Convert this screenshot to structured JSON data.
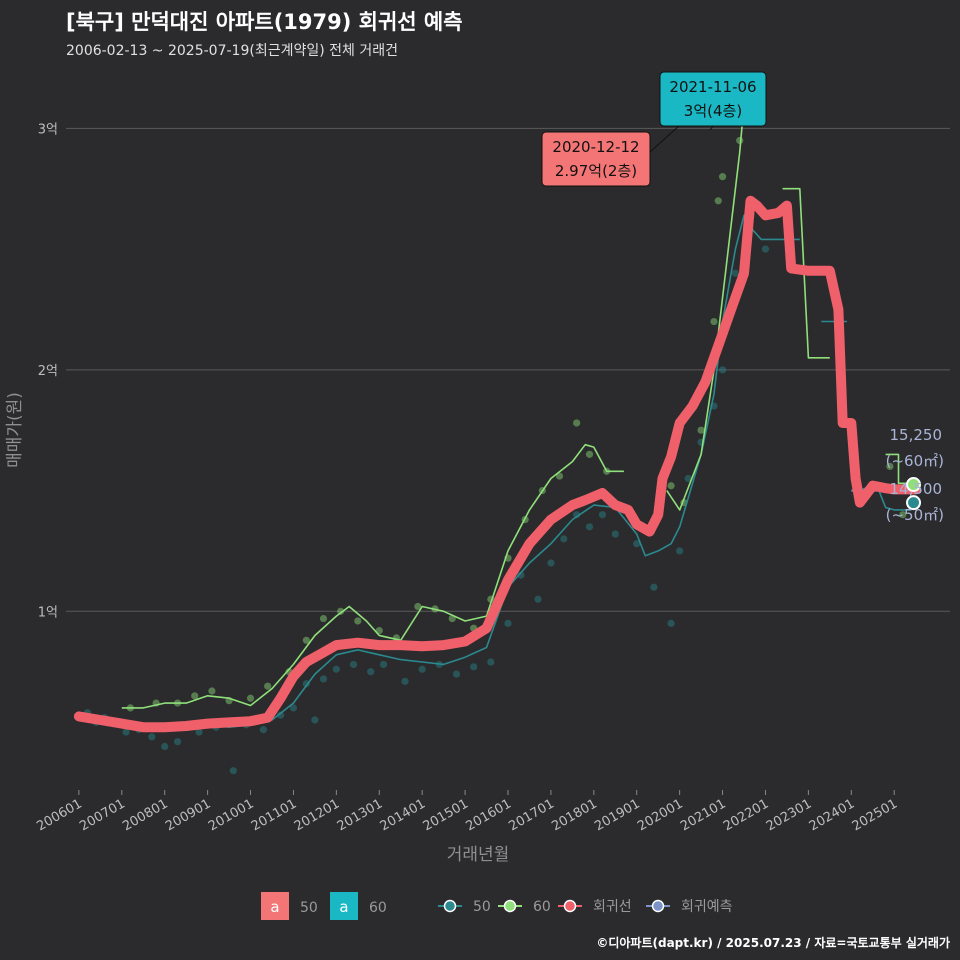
{
  "title": "[북구] 만덕대진 아파트(1979) 회귀선 예측",
  "subtitle": "2006-02-13 ~ 2025-07-19(최근계약일) 전체 거래건",
  "credit": "©디아파트(dapt.kr) / 2025.07.23 / 자료=국토교통부 실거래가",
  "colors": {
    "background": "#2b2b2d",
    "grid": "#5a5a5a",
    "area50": "#2a8a8f",
    "area60": "#8fe07a",
    "regression": "#f0606a",
    "forecast": "#7b93c9",
    "callout_red": "#f47575",
    "callout_teal": "#19b8c4"
  },
  "chart_data": {
    "type": "line",
    "xlabel": "거래년월",
    "ylabel": "매매가(원)",
    "x_unit": "decimal year",
    "y_unit": "만원",
    "xlim": [
      2005.7,
      2026.3
    ],
    "ylim": [
      2600,
      32500
    ],
    "x_ticks": [
      {
        "x": 2006.0,
        "label": "200601"
      },
      {
        "x": 2007.0,
        "label": "200701"
      },
      {
        "x": 2008.0,
        "label": "200801"
      },
      {
        "x": 2009.0,
        "label": "200901"
      },
      {
        "x": 2010.0,
        "label": "201001"
      },
      {
        "x": 2011.0,
        "label": "201101"
      },
      {
        "x": 2012.0,
        "label": "201201"
      },
      {
        "x": 2013.0,
        "label": "201301"
      },
      {
        "x": 2014.0,
        "label": "201401"
      },
      {
        "x": 2015.0,
        "label": "201501"
      },
      {
        "x": 2016.0,
        "label": "201601"
      },
      {
        "x": 2017.0,
        "label": "201701"
      },
      {
        "x": 2018.0,
        "label": "201801"
      },
      {
        "x": 2019.0,
        "label": "201901"
      },
      {
        "x": 2020.0,
        "label": "202001"
      },
      {
        "x": 2021.0,
        "label": "202101"
      },
      {
        "x": 2022.0,
        "label": "202201"
      },
      {
        "x": 2023.0,
        "label": "202301"
      },
      {
        "x": 2024.0,
        "label": "202401"
      },
      {
        "x": 2025.0,
        "label": "202501"
      }
    ],
    "y_ticks": [
      {
        "y": 10000,
        "label": "1억"
      },
      {
        "y": 20000,
        "label": "2억"
      },
      {
        "y": 30000,
        "label": "3억"
      }
    ],
    "series": [
      {
        "name": "50",
        "role": "area50",
        "points": [
          [
            2006.1,
            5600
          ],
          [
            2006.5,
            5500
          ],
          [
            2007.0,
            5400
          ],
          [
            2007.5,
            5200
          ],
          [
            2008.0,
            5100
          ],
          [
            2008.5,
            5100
          ],
          [
            2009.0,
            5300
          ],
          [
            2009.5,
            5200
          ],
          [
            2010.0,
            5300
          ],
          [
            2010.5,
            5500
          ],
          [
            2011.0,
            6200
          ],
          [
            2011.5,
            7400
          ],
          [
            2012.0,
            8200
          ],
          [
            2012.5,
            8400
          ],
          [
            2013.0,
            8200
          ],
          [
            2013.5,
            8000
          ],
          [
            2014.0,
            7900
          ],
          [
            2014.5,
            7800
          ],
          [
            2015.0,
            8100
          ],
          [
            2015.5,
            8500
          ],
          [
            2016.0,
            11000
          ],
          [
            2016.5,
            12000
          ],
          [
            2017.0,
            12800
          ],
          [
            2017.5,
            13800
          ],
          [
            2018.0,
            14400
          ],
          [
            2018.5,
            14300
          ],
          [
            2019.0,
            13200
          ],
          [
            2019.2,
            12300
          ],
          [
            2019.5,
            12500
          ],
          [
            2019.8,
            12800
          ],
          [
            2020.0,
            13500
          ],
          [
            2020.5,
            16500
          ],
          [
            2020.8,
            19000
          ],
          [
            2021.0,
            22000
          ],
          [
            2021.3,
            25000
          ],
          [
            2021.5,
            26400
          ],
          [
            2021.7,
            25800
          ],
          [
            2021.9,
            25400
          ],
          [
            2022.2,
            25400
          ],
          [
            2022.8,
            25400
          ]
        ]
      },
      {
        "name": "50",
        "role": "area50",
        "points": [
          [
            2023.3,
            22000
          ],
          [
            2023.9,
            22000
          ]
        ]
      },
      {
        "name": "50",
        "role": "area50",
        "points": [
          [
            2024.1,
            15000
          ],
          [
            2024.6,
            15200
          ],
          [
            2024.8,
            14300
          ],
          [
            2025.0,
            14200
          ],
          [
            2025.4,
            14200
          ]
        ]
      },
      {
        "name": "60",
        "role": "area60",
        "points": [
          [
            2007.0,
            6000
          ],
          [
            2007.5,
            6000
          ],
          [
            2008.0,
            6200
          ],
          [
            2008.5,
            6200
          ],
          [
            2009.0,
            6500
          ],
          [
            2009.5,
            6400
          ],
          [
            2010.0,
            6100
          ],
          [
            2010.5,
            6800
          ],
          [
            2011.0,
            7800
          ],
          [
            2011.5,
            9000
          ],
          [
            2012.0,
            9800
          ],
          [
            2012.3,
            10200
          ],
          [
            2012.7,
            9600
          ],
          [
            2013.0,
            9000
          ],
          [
            2013.5,
            8800
          ],
          [
            2014.0,
            10200
          ],
          [
            2014.5,
            10000
          ],
          [
            2015.0,
            9600
          ],
          [
            2015.5,
            9800
          ],
          [
            2016.0,
            12500
          ],
          [
            2016.5,
            14200
          ],
          [
            2017.0,
            15500
          ],
          [
            2017.5,
            16200
          ],
          [
            2017.8,
            16900
          ],
          [
            2018.0,
            16800
          ],
          [
            2018.3,
            15800
          ],
          [
            2018.7,
            15800
          ]
        ]
      },
      {
        "name": "60",
        "role": "area60",
        "points": [
          [
            2019.7,
            15000
          ],
          [
            2020.0,
            14200
          ],
          [
            2020.5,
            16500
          ],
          [
            2020.8,
            20000
          ],
          [
            2021.0,
            23000
          ],
          [
            2021.2,
            26000
          ],
          [
            2021.4,
            29000
          ],
          [
            2021.5,
            31000
          ]
        ]
      },
      {
        "name": "60",
        "role": "area60",
        "points": [
          [
            2022.4,
            27500
          ],
          [
            2022.8,
            27500
          ],
          [
            2023.0,
            20500
          ],
          [
            2023.5,
            20500
          ]
        ]
      },
      {
        "name": "60",
        "role": "area60",
        "points": [
          [
            2024.8,
            16500
          ],
          [
            2025.1,
            16500
          ],
          [
            2025.1,
            15300
          ],
          [
            2025.5,
            15300
          ]
        ]
      },
      {
        "name": "회귀선",
        "role": "regression",
        "points": [
          [
            2006.0,
            5650
          ],
          [
            2006.5,
            5500
          ],
          [
            2007.0,
            5350
          ],
          [
            2007.5,
            5200
          ],
          [
            2008.0,
            5200
          ],
          [
            2008.5,
            5250
          ],
          [
            2009.0,
            5350
          ],
          [
            2009.5,
            5400
          ],
          [
            2010.0,
            5450
          ],
          [
            2010.4,
            5600
          ],
          [
            2010.7,
            6400
          ],
          [
            2011.0,
            7300
          ],
          [
            2011.3,
            7900
          ],
          [
            2011.7,
            8300
          ],
          [
            2012.0,
            8600
          ],
          [
            2012.5,
            8700
          ],
          [
            2013.0,
            8600
          ],
          [
            2013.5,
            8600
          ],
          [
            2014.0,
            8550
          ],
          [
            2014.5,
            8600
          ],
          [
            2015.0,
            8750
          ],
          [
            2015.5,
            9300
          ],
          [
            2016.0,
            11300
          ],
          [
            2016.5,
            12800
          ],
          [
            2017.0,
            13800
          ],
          [
            2017.5,
            14400
          ],
          [
            2017.8,
            14600
          ],
          [
            2018.2,
            14900
          ],
          [
            2018.5,
            14400
          ],
          [
            2018.8,
            14200
          ],
          [
            2019.0,
            13600
          ],
          [
            2019.3,
            13300
          ],
          [
            2019.5,
            14000
          ],
          [
            2019.6,
            15500
          ],
          [
            2019.8,
            16400
          ],
          [
            2020.0,
            17800
          ],
          [
            2020.3,
            18500
          ],
          [
            2020.6,
            19500
          ],
          [
            2020.9,
            21000
          ],
          [
            2021.2,
            22500
          ],
          [
            2021.5,
            24000
          ],
          [
            2021.65,
            27000
          ],
          [
            2021.8,
            26800
          ],
          [
            2022.0,
            26400
          ],
          [
            2022.3,
            26500
          ],
          [
            2022.5,
            26800
          ],
          [
            2022.6,
            24200
          ],
          [
            2023.0,
            24100
          ],
          [
            2023.5,
            24100
          ],
          [
            2023.7,
            22500
          ],
          [
            2023.8,
            17800
          ],
          [
            2024.0,
            17800
          ],
          [
            2024.1,
            15500
          ],
          [
            2024.2,
            14500
          ],
          [
            2024.5,
            15200
          ],
          [
            2024.8,
            15100
          ],
          [
            2025.0,
            15050
          ],
          [
            2025.5,
            15050
          ]
        ]
      },
      {
        "name": "회귀예측",
        "role": "forecast",
        "points": [
          [
            2024.0,
            15000
          ],
          [
            2025.5,
            15000
          ]
        ]
      }
    ],
    "scatter": {
      "series_50": [
        [
          2006.2,
          5800
        ],
        [
          2006.4,
          5400
        ],
        [
          2006.6,
          5600
        ],
        [
          2007.1,
          5000
        ],
        [
          2007.4,
          5100
        ],
        [
          2007.7,
          4800
        ],
        [
          2008.0,
          4400
        ],
        [
          2008.3,
          4600
        ],
        [
          2008.8,
          5000
        ],
        [
          2009.2,
          5200
        ],
        [
          2009.6,
          3400
        ],
        [
          2009.9,
          5300
        ],
        [
          2010.3,
          5100
        ],
        [
          2010.7,
          5700
        ],
        [
          2011.0,
          6000
        ],
        [
          2011.3,
          7000
        ],
        [
          2011.5,
          5500
        ],
        [
          2011.7,
          7200
        ],
        [
          2012.0,
          7600
        ],
        [
          2012.4,
          7800
        ],
        [
          2012.8,
          7500
        ],
        [
          2013.1,
          7800
        ],
        [
          2013.6,
          7100
        ],
        [
          2014.0,
          7600
        ],
        [
          2014.4,
          7800
        ],
        [
          2014.8,
          7400
        ],
        [
          2015.2,
          7700
        ],
        [
          2015.6,
          7900
        ],
        [
          2016.0,
          9500
        ],
        [
          2016.3,
          11500
        ],
        [
          2016.7,
          10500
        ],
        [
          2017.0,
          12000
        ],
        [
          2017.3,
          13000
        ],
        [
          2017.6,
          14000
        ],
        [
          2017.9,
          13500
        ],
        [
          2018.2,
          14000
        ],
        [
          2018.5,
          13200
        ],
        [
          2019.0,
          12800
        ],
        [
          2019.4,
          11000
        ],
        [
          2019.8,
          9500
        ],
        [
          2020.0,
          12500
        ],
        [
          2020.2,
          15500
        ],
        [
          2020.5,
          17000
        ],
        [
          2020.8,
          18500
        ],
        [
          2021.0,
          20000
        ],
        [
          2021.3,
          24000
        ],
        [
          2021.6,
          25500
        ],
        [
          2022.0,
          25000
        ]
      ],
      "series_60": [
        [
          2007.2,
          6000
        ],
        [
          2007.8,
          6200
        ],
        [
          2008.3,
          6200
        ],
        [
          2008.7,
          6500
        ],
        [
          2009.1,
          6700
        ],
        [
          2009.5,
          6300
        ],
        [
          2010.0,
          6400
        ],
        [
          2010.4,
          6900
        ],
        [
          2010.9,
          7500
        ],
        [
          2011.3,
          8800
        ],
        [
          2011.7,
          9700
        ],
        [
          2012.1,
          10000
        ],
        [
          2012.5,
          9600
        ],
        [
          2013.0,
          9200
        ],
        [
          2013.4,
          8900
        ],
        [
          2013.9,
          10200
        ],
        [
          2014.3,
          10100
        ],
        [
          2014.7,
          9700
        ],
        [
          2015.2,
          9300
        ],
        [
          2015.6,
          10500
        ],
        [
          2016.0,
          12200
        ],
        [
          2016.4,
          13800
        ],
        [
          2016.8,
          15000
        ],
        [
          2017.2,
          15600
        ],
        [
          2017.6,
          17800
        ],
        [
          2017.9,
          16500
        ],
        [
          2018.3,
          15800
        ],
        [
          2019.8,
          15200
        ],
        [
          2020.1,
          14500
        ],
        [
          2020.5,
          17500
        ],
        [
          2020.8,
          22000
        ],
        [
          2020.9,
          27000
        ],
        [
          2021.0,
          28000
        ],
        [
          2021.4,
          29500
        ],
        [
          2024.9,
          16000
        ],
        [
          2025.2,
          14000
        ]
      ]
    },
    "endpoints": [
      {
        "name": "60",
        "x": 2025.45,
        "y": 15250,
        "value_label": "15,250",
        "area_label": "(~60㎡)"
      },
      {
        "name": "50",
        "x": 2025.45,
        "y": 14500,
        "value_label": "14,500",
        "area_label": "(~50㎡)"
      }
    ],
    "callouts": [
      {
        "date": "2020-12-12",
        "price": "2.97억(2층)",
        "x": 2020.95,
        "y": 29700,
        "style": "red"
      },
      {
        "date": "2021-11-06",
        "price": "3억(4층)",
        "x": 2021.85,
        "y": 30000,
        "style": "teal"
      }
    ],
    "legend": {
      "placement": "bottom",
      "fill_items": [
        {
          "key_letter": "a",
          "label": "50",
          "color": "#f47575"
        },
        {
          "key_letter": "a",
          "label": "60",
          "color": "#19b8c4"
        }
      ],
      "line_items": [
        {
          "label": "50",
          "color": "#2a8a8f"
        },
        {
          "label": "60",
          "color": "#8fe07a"
        },
        {
          "label": "회귀선",
          "color": "#f0606a"
        },
        {
          "label": "회귀예측",
          "color": "#7b93c9"
        }
      ]
    }
  }
}
